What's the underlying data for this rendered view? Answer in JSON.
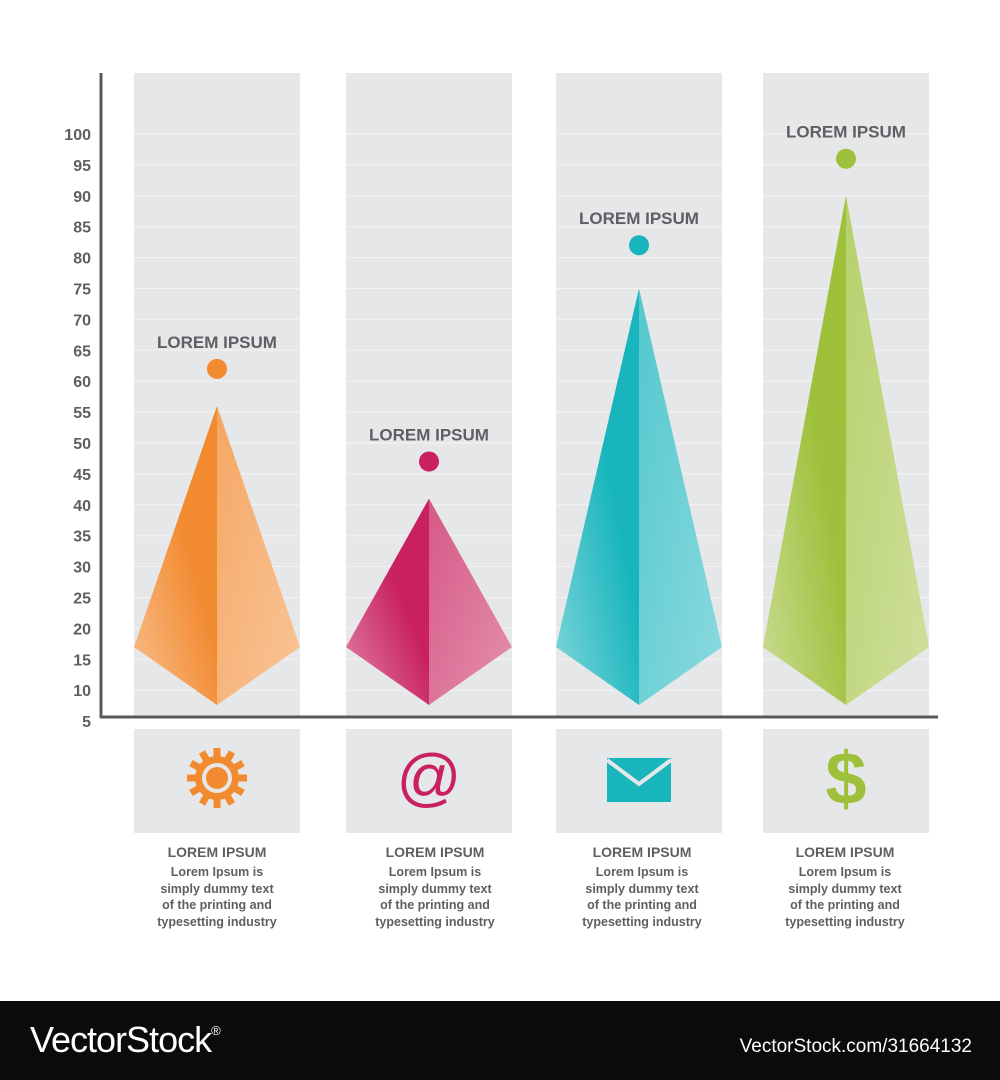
{
  "chart_data": {
    "type": "bar",
    "categories": [
      "LOREM IPSUM",
      "LOREM IPSUM",
      "LOREM IPSUM",
      "LOREM IPSUM"
    ],
    "values": [
      56,
      41,
      75,
      90
    ],
    "marker_values": [
      62,
      47,
      82,
      96
    ],
    "yticks": [
      5,
      10,
      15,
      20,
      25,
      30,
      35,
      40,
      45,
      50,
      55,
      60,
      65,
      70,
      75,
      80,
      85,
      90,
      95,
      100
    ],
    "ylim": [
      0,
      100
    ],
    "grid": true,
    "colors": [
      "#f28a30",
      "#c8215e",
      "#18b5bd",
      "#9ec03a"
    ],
    "icons": [
      "gear-icon",
      "at-sign-icon",
      "envelope-icon",
      "dollar-icon"
    ],
    "icon_glyphs": [
      "",
      "@",
      "",
      "$"
    ]
  },
  "columns": [
    {
      "title": "LOREM IPSUM",
      "desc": [
        "Lorem Ipsum is",
        "simply dummy text",
        "of the printing and",
        "typesetting industry"
      ]
    },
    {
      "title": "LOREM IPSUM",
      "desc": [
        "Lorem Ipsum is",
        "simply dummy text",
        "of the printing and",
        "typesetting industry"
      ]
    },
    {
      "title": "LOREM IPSUM",
      "desc": [
        "Lorem Ipsum is",
        "simply dummy text",
        "of the printing and",
        "typesetting industry"
      ]
    },
    {
      "title": "LOREM IPSUM",
      "desc": [
        "Lorem Ipsum is",
        "simply dummy text",
        "of the printing and",
        "typesetting industry"
      ]
    }
  ],
  "footer": {
    "brand": "VectorStock",
    "brand_mark": "®",
    "image_id": "VectorStock.com/31664132"
  }
}
